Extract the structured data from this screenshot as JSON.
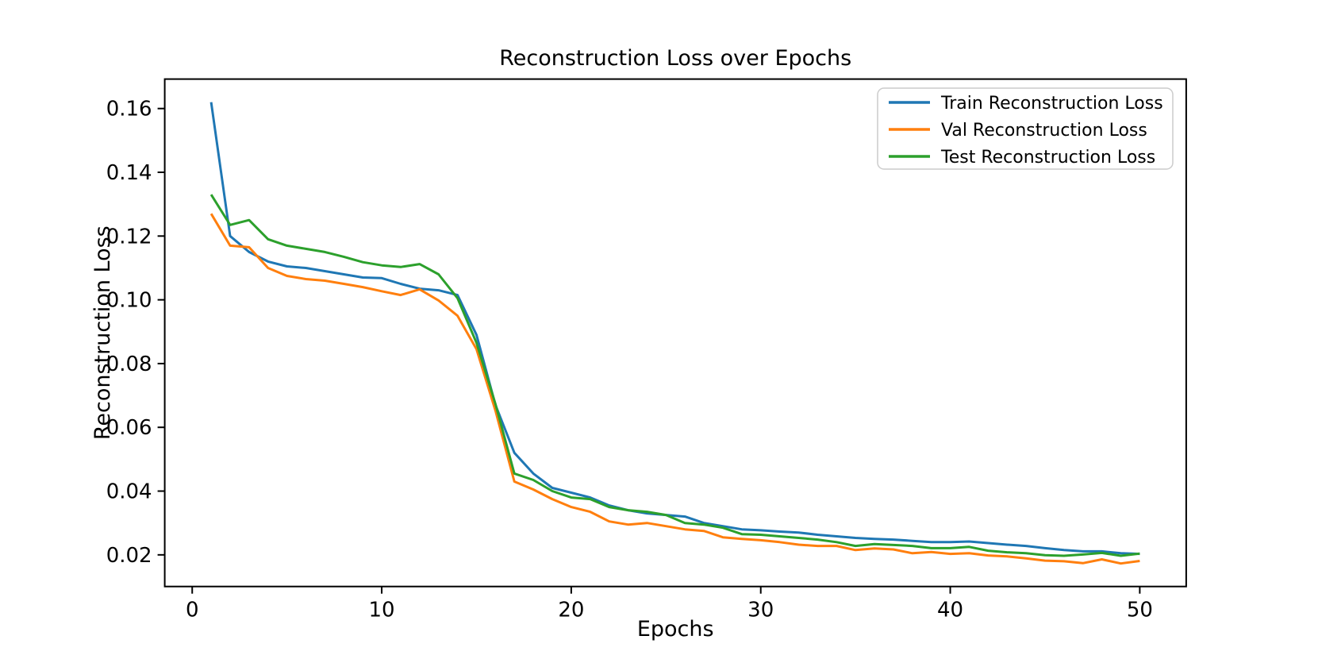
{
  "chart_data": {
    "type": "line",
    "title": "Reconstruction Loss over Epochs",
    "xlabel": "Epochs",
    "ylabel": "Reconstruction Loss",
    "grid": false,
    "legend_position": "upper right",
    "background_color": "#ffffff",
    "spine_color": "#000000",
    "xlim": [
      -1.45,
      52.45
    ],
    "ylim": [
      0.01007,
      0.16924
    ],
    "xticks": [
      0,
      10,
      20,
      30,
      40,
      50
    ],
    "xtick_labels": [
      "0",
      "10",
      "20",
      "30",
      "40",
      "50"
    ],
    "yticks": [
      0.02,
      0.04,
      0.06,
      0.08,
      0.1,
      0.12,
      0.14,
      0.16
    ],
    "ytick_labels": [
      "0.02",
      "0.04",
      "0.06",
      "0.08",
      "0.10",
      "0.12",
      "0.14",
      "0.16"
    ],
    "epochs": [
      1,
      2,
      3,
      4,
      5,
      6,
      7,
      8,
      9,
      10,
      11,
      12,
      13,
      14,
      15,
      16,
      17,
      18,
      19,
      20,
      21,
      22,
      23,
      24,
      25,
      26,
      27,
      28,
      29,
      30,
      31,
      32,
      33,
      34,
      35,
      36,
      37,
      38,
      39,
      40,
      41,
      42,
      43,
      44,
      45,
      46,
      47,
      48,
      49,
      50
    ],
    "series": [
      {
        "name": "Train Reconstruction Loss",
        "color": "#1f77b4",
        "values": [
          0.162,
          0.12,
          0.115,
          0.112,
          0.1105,
          0.11,
          0.109,
          0.108,
          0.107,
          0.1068,
          0.105,
          0.1035,
          0.103,
          0.1015,
          0.089,
          0.067,
          0.052,
          0.0455,
          0.041,
          0.0395,
          0.038,
          0.0355,
          0.034,
          0.033,
          0.0325,
          0.032,
          0.03,
          0.029,
          0.028,
          0.0277,
          0.0273,
          0.027,
          0.0263,
          0.0258,
          0.0253,
          0.025,
          0.0248,
          0.0244,
          0.024,
          0.024,
          0.0242,
          0.0237,
          0.0232,
          0.0228,
          0.0221,
          0.0215,
          0.0211,
          0.0211,
          0.0205,
          0.0203
        ]
      },
      {
        "name": "Val Reconstruction Loss",
        "color": "#ff7f0e",
        "values": [
          0.127,
          0.117,
          0.1165,
          0.11,
          0.1075,
          0.1065,
          0.106,
          0.105,
          0.104,
          0.1027,
          0.1015,
          0.1033,
          0.0998,
          0.095,
          0.0845,
          0.0652,
          0.043,
          0.0405,
          0.0375,
          0.035,
          0.0335,
          0.0305,
          0.0295,
          0.03,
          0.029,
          0.028,
          0.0275,
          0.0255,
          0.025,
          0.0246,
          0.024,
          0.0232,
          0.0228,
          0.0228,
          0.0215,
          0.022,
          0.0217,
          0.0205,
          0.0209,
          0.0203,
          0.0205,
          0.0198,
          0.0195,
          0.0189,
          0.0182,
          0.018,
          0.0174,
          0.0186,
          0.0173,
          0.0181
        ]
      },
      {
        "name": "Test Reconstruction Loss",
        "color": "#2ca02c",
        "values": [
          0.133,
          0.1235,
          0.125,
          0.119,
          0.117,
          0.116,
          0.115,
          0.1135,
          0.1118,
          0.1108,
          0.1103,
          0.1112,
          0.108,
          0.1005,
          0.0865,
          0.0673,
          0.0455,
          0.0435,
          0.04,
          0.038,
          0.0375,
          0.035,
          0.034,
          0.0335,
          0.0325,
          0.03,
          0.0295,
          0.0285,
          0.0265,
          0.0263,
          0.0258,
          0.0253,
          0.0248,
          0.024,
          0.0228,
          0.0234,
          0.0231,
          0.0228,
          0.0221,
          0.0221,
          0.0225,
          0.0213,
          0.0208,
          0.0205,
          0.0199,
          0.0197,
          0.0201,
          0.0206,
          0.0197,
          0.0204
        ]
      }
    ]
  }
}
